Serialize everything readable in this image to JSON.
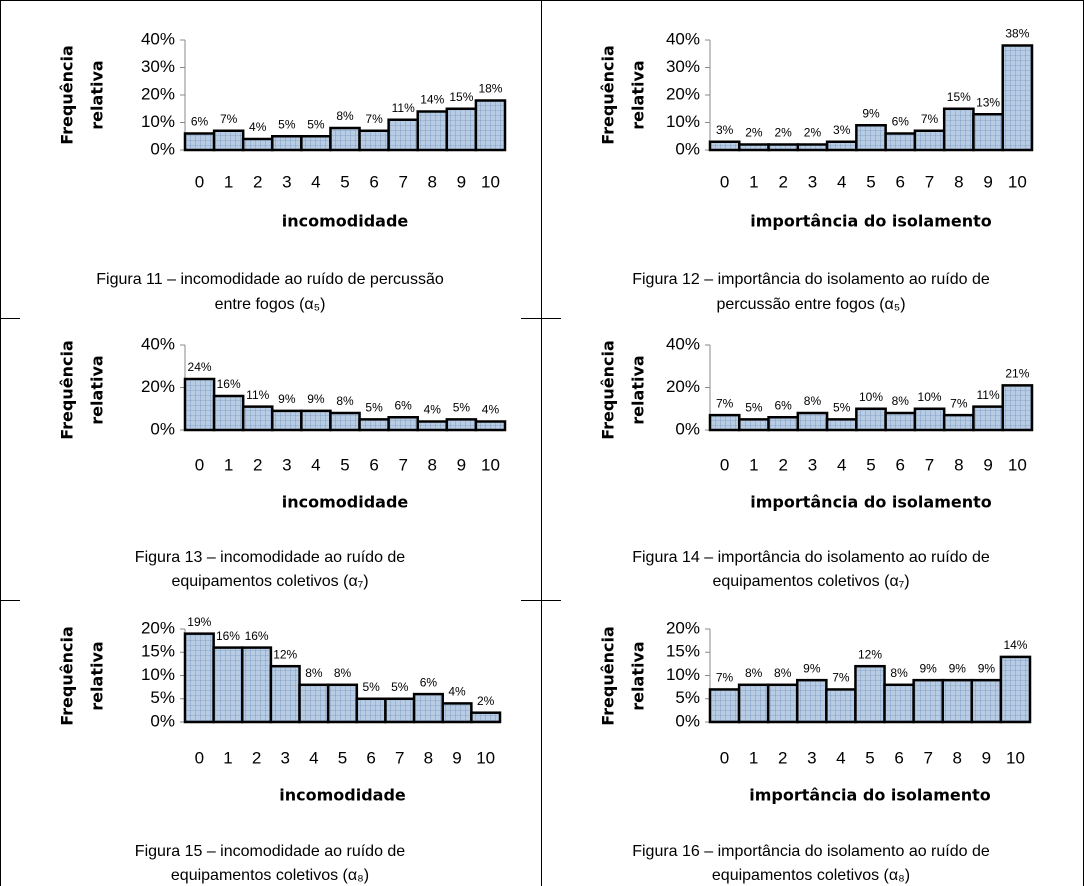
{
  "chart_data": [
    {
      "type": "bar",
      "ylabel": [
        "Frequência",
        "relativa"
      ],
      "xlabel": "incomodidade",
      "categories": [
        "0",
        "1",
        "2",
        "3",
        "4",
        "5",
        "6",
        "7",
        "8",
        "9",
        "10"
      ],
      "values": [
        6,
        7,
        4,
        5,
        5,
        8,
        7,
        11,
        14,
        15,
        18
      ],
      "value_labels": [
        "6%",
        "7%",
        "4%",
        "5%",
        "5%",
        "8%",
        "7%",
        "11%",
        "14%",
        "15%",
        "18%"
      ],
      "color": "#b8cce4",
      "ylim": [
        0,
        40
      ],
      "yticks": [
        {
          "value": 0,
          "label": "0%"
        },
        {
          "value": 10,
          "label": "10%"
        },
        {
          "value": 20,
          "label": "20%"
        },
        {
          "value": 30,
          "label": "30%"
        },
        {
          "value": 40,
          "label": "40%"
        }
      ],
      "caption": [
        "Figura 11 – incomodidade ao ruído de percussão",
        "entre fogos (α₅)"
      ]
    },
    {
      "type": "bar",
      "ylabel": [
        "Frequência",
        "relativa"
      ],
      "xlabel": "importância do isolamento",
      "categories": [
        "0",
        "1",
        "2",
        "3",
        "4",
        "5",
        "6",
        "7",
        "8",
        "9",
        "10"
      ],
      "values": [
        3,
        2,
        2,
        2,
        3,
        9,
        6,
        7,
        15,
        13,
        38
      ],
      "value_labels": [
        "3%",
        "2%",
        "2%",
        "2%",
        "3%",
        "9%",
        "6%",
        "7%",
        "15%",
        "13%",
        "38%"
      ],
      "color": "#b8cce4",
      "ylim": [
        0,
        40
      ],
      "yticks": [
        {
          "value": 0,
          "label": "0%"
        },
        {
          "value": 10,
          "label": "10%"
        },
        {
          "value": 20,
          "label": "20%"
        },
        {
          "value": 30,
          "label": "30%"
        },
        {
          "value": 40,
          "label": "40%"
        }
      ],
      "caption": [
        "Figura 12 – importância do isolamento ao ruído de",
        "percussão entre fogos (α₅)"
      ]
    },
    {
      "type": "bar",
      "ylabel": [
        "Frequência",
        "relativa"
      ],
      "xlabel": "incomodidade",
      "categories": [
        "0",
        "1",
        "2",
        "3",
        "4",
        "5",
        "6",
        "7",
        "8",
        "9",
        "10"
      ],
      "values": [
        24,
        16,
        11,
        9,
        9,
        8,
        5,
        6,
        4,
        5,
        4
      ],
      "value_labels": [
        "24%",
        "16%",
        "11%",
        "9%",
        "9%",
        "8%",
        "5%",
        "6%",
        "4%",
        "5%",
        "4%"
      ],
      "color": "#b8cce4",
      "ylim": [
        0,
        40
      ],
      "yticks": [
        {
          "value": 0,
          "label": "0%"
        },
        {
          "value": 20,
          "label": "20%"
        },
        {
          "value": 40,
          "label": "40%"
        }
      ],
      "caption": [
        "Figura 13 – incomodidade ao ruído de",
        "equipamentos coletivos (α₇)"
      ]
    },
    {
      "type": "bar",
      "ylabel": [
        "Frequência",
        "relativa"
      ],
      "xlabel": "importância do isolamento",
      "categories": [
        "0",
        "1",
        "2",
        "3",
        "4",
        "5",
        "6",
        "7",
        "8",
        "9",
        "10"
      ],
      "values": [
        7,
        5,
        6,
        8,
        5,
        10,
        8,
        10,
        7,
        11,
        21
      ],
      "value_labels": [
        "7%",
        "5%",
        "6%",
        "8%",
        "5%",
        "10%",
        "8%",
        "10%",
        "7%",
        "11%",
        "21%"
      ],
      "color": "#b8cce4",
      "ylim": [
        0,
        40
      ],
      "yticks": [
        {
          "value": 0,
          "label": "0%"
        },
        {
          "value": 20,
          "label": "20%"
        },
        {
          "value": 40,
          "label": "40%"
        }
      ],
      "caption": [
        "Figura 14 – importância do isolamento ao ruído de",
        "equipamentos coletivos (α₇)"
      ]
    },
    {
      "type": "bar",
      "ylabel": [
        "Frequência",
        "relativa"
      ],
      "xlabel": "incomodidade",
      "categories": [
        "0",
        "1",
        "2",
        "3",
        "4",
        "5",
        "6",
        "7",
        "8",
        "9",
        "10"
      ],
      "values": [
        19,
        16,
        16,
        12,
        8,
        8,
        5,
        5,
        6,
        4,
        2
      ],
      "value_labels": [
        "19%",
        "16%",
        "16%",
        "12%",
        "8%",
        "8%",
        "5%",
        "5%",
        "6%",
        "4%",
        "2%"
      ],
      "color": "#b8cce4",
      "ylim": [
        0,
        20
      ],
      "yticks": [
        {
          "value": 0,
          "label": "0%"
        },
        {
          "value": 5,
          "label": "5%"
        },
        {
          "value": 10,
          "label": "10%"
        },
        {
          "value": 15,
          "label": "15%"
        },
        {
          "value": 20,
          "label": "20%"
        }
      ],
      "caption": [
        "Figura 15 – incomodidade ao ruído de",
        "equipamentos coletivos (α₈)"
      ]
    },
    {
      "type": "bar",
      "ylabel": [
        "Frequência",
        "relativa"
      ],
      "xlabel": "importância do isolamento",
      "categories": [
        "0",
        "1",
        "2",
        "3",
        "4",
        "5",
        "6",
        "7",
        "8",
        "9",
        "10"
      ],
      "values": [
        7,
        8,
        8,
        9,
        7,
        12,
        8,
        9,
        9,
        9,
        14
      ],
      "value_labels": [
        "7%",
        "8%",
        "8%",
        "9%",
        "7%",
        "12%",
        "8%",
        "9%",
        "9%",
        "9%",
        "14%"
      ],
      "color": "#b8cce4",
      "ylim": [
        0,
        20
      ],
      "yticks": [
        {
          "value": 0,
          "label": "0%"
        },
        {
          "value": 5,
          "label": "5%"
        },
        {
          "value": 10,
          "label": "10%"
        },
        {
          "value": 15,
          "label": "15%"
        },
        {
          "value": 20,
          "label": "20%"
        }
      ],
      "caption": [
        "Figura 16 – importância do isolamento ao ruído de",
        "equipamentos coletivos (α₈)"
      ]
    }
  ]
}
